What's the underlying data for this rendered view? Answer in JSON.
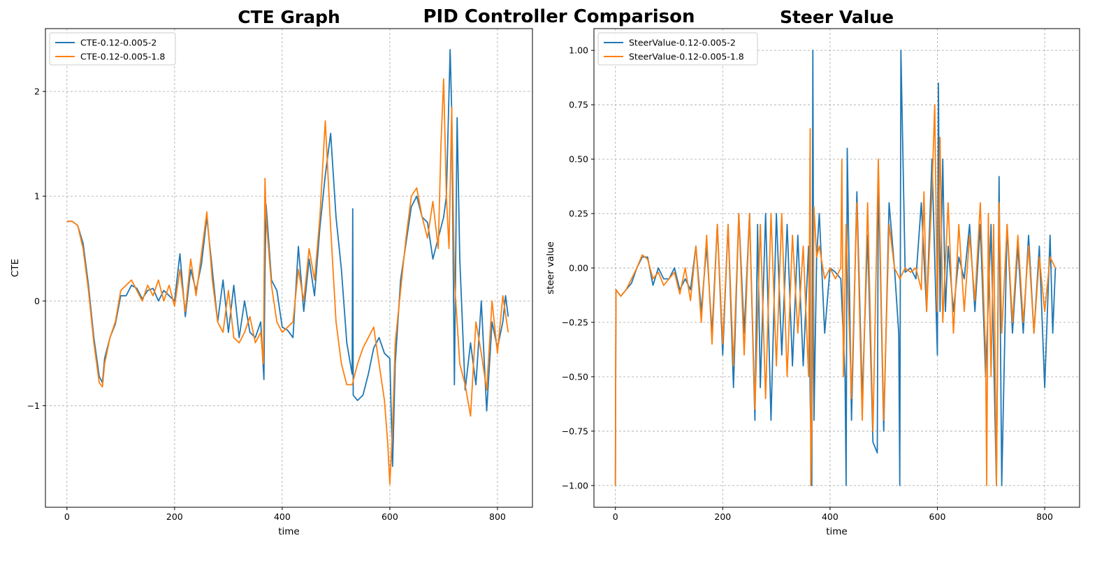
{
  "figure": {
    "suptitle": "PID Controller Comparison"
  },
  "colors": {
    "series1": "#1f77b4",
    "series2": "#ff7f0e",
    "grid": "#b0b0b0",
    "axes": "#000000",
    "legend_border": "#cccccc"
  },
  "chart_data": [
    {
      "type": "line",
      "title": "CTE Graph",
      "xlabel": "time",
      "ylabel": "CTE",
      "xlim": [
        -40,
        865
      ],
      "ylim": [
        -1.97,
        2.6
      ],
      "xticks": [
        0,
        200,
        400,
        600,
        800
      ],
      "yticks": [
        -1,
        0,
        1,
        2
      ],
      "ytick_labels": [
        "−1",
        "0",
        "1",
        "2"
      ],
      "grid": true,
      "legend_position": "upper-left",
      "series": [
        {
          "name": "CTE-0.12-0.005-2",
          "x": [
            0,
            10,
            20,
            30,
            40,
            50,
            60,
            66,
            70,
            80,
            90,
            100,
            110,
            120,
            130,
            140,
            150,
            160,
            170,
            180,
            190,
            200,
            210,
            220,
            230,
            240,
            250,
            260,
            270,
            280,
            290,
            300,
            310,
            320,
            330,
            340,
            350,
            360,
            366,
            368,
            370,
            380,
            390,
            400,
            410,
            420,
            430,
            440,
            450,
            460,
            470,
            480,
            490,
            500,
            510,
            520,
            530,
            531,
            532,
            540,
            550,
            560,
            570,
            580,
            590,
            600,
            605,
            610,
            620,
            630,
            640,
            650,
            660,
            670,
            680,
            690,
            700,
            705,
            712,
            715,
            720,
            725,
            730,
            740,
            750,
            760,
            770,
            780,
            790,
            800,
            810,
            815,
            820
          ],
          "y": [
            0.76,
            0.76,
            0.72,
            0.55,
            0.15,
            -0.35,
            -0.72,
            -0.78,
            -0.55,
            -0.35,
            -0.22,
            0.05,
            0.05,
            0.15,
            0.12,
            0.02,
            0.1,
            0.12,
            0.0,
            0.1,
            0.05,
            0.0,
            0.45,
            -0.15,
            0.3,
            0.1,
            0.35,
            0.8,
            0.3,
            -0.2,
            0.2,
            -0.3,
            0.15,
            -0.35,
            0.0,
            -0.3,
            -0.35,
            -0.2,
            -0.75,
            0.3,
            0.92,
            0.2,
            0.1,
            -0.25,
            -0.28,
            -0.35,
            0.52,
            -0.1,
            0.4,
            0.05,
            0.7,
            1.2,
            1.6,
            0.8,
            0.3,
            -0.4,
            -0.7,
            0.88,
            -0.9,
            -0.95,
            -0.9,
            -0.7,
            -0.45,
            -0.35,
            -0.5,
            -0.55,
            -1.58,
            -0.6,
            0.2,
            0.55,
            0.9,
            1.0,
            0.8,
            0.75,
            0.4,
            0.6,
            0.8,
            1.0,
            2.4,
            1.8,
            -0.8,
            1.75,
            0.4,
            -0.85,
            -0.4,
            -0.8,
            0.0,
            -1.05,
            -0.2,
            -0.45,
            -0.2,
            0.05,
            -0.15
          ]
        },
        {
          "name": "CTE-0.12-0.005-1.8",
          "x": [
            0,
            10,
            20,
            30,
            40,
            50,
            60,
            66,
            70,
            80,
            90,
            100,
            110,
            120,
            130,
            140,
            150,
            160,
            170,
            180,
            190,
            200,
            210,
            220,
            230,
            240,
            250,
            260,
            270,
            280,
            290,
            300,
            310,
            320,
            330,
            340,
            350,
            360,
            365,
            368,
            370,
            380,
            390,
            400,
            410,
            420,
            430,
            440,
            450,
            460,
            470,
            480,
            490,
            500,
            510,
            520,
            530,
            540,
            550,
            560,
            570,
            580,
            590,
            596,
            600,
            605,
            610,
            620,
            630,
            640,
            650,
            660,
            670,
            680,
            690,
            695,
            700,
            705,
            710,
            715,
            720,
            730,
            740,
            750,
            760,
            770,
            780,
            790,
            800,
            810,
            820
          ],
          "y": [
            0.76,
            0.76,
            0.72,
            0.5,
            0.1,
            -0.4,
            -0.78,
            -0.82,
            -0.6,
            -0.35,
            -0.2,
            0.1,
            0.15,
            0.2,
            0.1,
            0.0,
            0.15,
            0.05,
            0.2,
            0.0,
            0.15,
            -0.05,
            0.3,
            -0.1,
            0.4,
            0.05,
            0.45,
            0.85,
            0.2,
            -0.2,
            -0.3,
            0.1,
            -0.35,
            -0.4,
            -0.3,
            -0.15,
            -0.4,
            -0.3,
            -0.6,
            1.17,
            0.8,
            0.15,
            -0.2,
            -0.3,
            -0.25,
            -0.2,
            0.3,
            0.0,
            0.5,
            0.2,
            0.8,
            1.72,
            0.7,
            -0.2,
            -0.6,
            -0.8,
            -0.8,
            -0.6,
            -0.45,
            -0.35,
            -0.25,
            -0.6,
            -0.95,
            -1.35,
            -1.75,
            -1.2,
            -0.4,
            0.1,
            0.6,
            1.0,
            1.08,
            0.8,
            0.6,
            0.95,
            0.5,
            1.5,
            2.12,
            1.0,
            0.5,
            1.85,
            0.2,
            -0.6,
            -0.8,
            -1.1,
            -0.2,
            -0.5,
            -0.85,
            0.0,
            -0.5,
            0.05,
            -0.3
          ]
        }
      ]
    },
    {
      "type": "line",
      "title": "Steer Value",
      "xlabel": "time",
      "ylabel": "steer value",
      "xlim": [
        -40,
        865
      ],
      "ylim": [
        -1.1,
        1.1
      ],
      "xticks": [
        0,
        200,
        400,
        600,
        800
      ],
      "yticks": [
        -1.0,
        -0.75,
        -0.5,
        -0.25,
        0.0,
        0.25,
        0.5,
        0.75,
        1.0
      ],
      "ytick_labels": [
        "−1.00",
        "−0.75",
        "−0.50",
        "−0.25",
        "0.00",
        "0.25",
        "0.50",
        "0.75",
        "1.00"
      ],
      "grid": true,
      "legend_position": "upper-left",
      "series": [
        {
          "name": "SteerValue-0.12-0.005-2",
          "x": [
            0,
            1,
            10,
            20,
            30,
            40,
            50,
            60,
            70,
            80,
            90,
            100,
            110,
            120,
            130,
            140,
            150,
            160,
            170,
            180,
            190,
            200,
            210,
            220,
            230,
            240,
            250,
            260,
            265,
            270,
            280,
            290,
            300,
            310,
            320,
            330,
            340,
            350,
            360,
            363,
            366,
            368,
            370,
            375,
            380,
            390,
            400,
            410,
            420,
            428,
            430,
            432,
            440,
            450,
            460,
            470,
            480,
            488,
            490,
            500,
            510,
            520,
            528,
            530,
            532,
            540,
            550,
            560,
            570,
            580,
            590,
            600,
            602,
            605,
            610,
            615,
            620,
            630,
            640,
            650,
            660,
            670,
            680,
            690,
            700,
            710,
            715,
            720,
            730,
            740,
            750,
            760,
            770,
            780,
            790,
            800,
            810,
            815,
            820
          ],
          "y": [
            -1.0,
            -0.1,
            -0.13,
            -0.1,
            -0.07,
            0.0,
            0.05,
            0.05,
            -0.08,
            0.0,
            -0.05,
            -0.05,
            0.0,
            -0.1,
            -0.05,
            -0.1,
            0.1,
            -0.2,
            0.1,
            -0.3,
            0.2,
            -0.4,
            0.2,
            -0.55,
            0.25,
            -0.3,
            0.25,
            -0.7,
            0.2,
            -0.55,
            0.25,
            -0.7,
            0.25,
            -0.4,
            0.2,
            -0.45,
            0.15,
            -0.45,
            0.1,
            -0.6,
            -1.0,
            1.0,
            -0.7,
            0.05,
            0.25,
            -0.3,
            0.0,
            -0.02,
            -0.05,
            -0.5,
            -1.0,
            0.55,
            -0.7,
            0.35,
            -0.6,
            0.15,
            -0.8,
            -0.85,
            0.45,
            -0.75,
            0.3,
            0.0,
            -0.3,
            -1.0,
            1.0,
            -0.02,
            0.0,
            -0.05,
            0.3,
            -0.2,
            0.5,
            -0.4,
            0.85,
            -0.2,
            0.5,
            -0.2,
            0.1,
            -0.2,
            0.05,
            -0.05,
            0.2,
            -0.2,
            0.2,
            -0.5,
            0.2,
            -1.0,
            0.42,
            -1.0,
            0.2,
            -0.3,
            0.1,
            -0.3,
            0.15,
            -0.3,
            0.1,
            -0.55,
            0.15,
            -0.3,
            0.0
          ]
        },
        {
          "name": "SteerValue-0.12-0.005-1.8",
          "x": [
            0,
            1,
            10,
            20,
            30,
            40,
            50,
            60,
            70,
            80,
            90,
            100,
            110,
            120,
            130,
            140,
            150,
            160,
            170,
            180,
            190,
            200,
            210,
            220,
            230,
            240,
            250,
            260,
            270,
            280,
            290,
            300,
            310,
            320,
            330,
            340,
            350,
            360,
            363,
            364,
            366,
            368,
            370,
            375,
            380,
            390,
            400,
            410,
            420,
            422,
            425,
            430,
            440,
            450,
            460,
            470,
            480,
            490,
            500,
            510,
            520,
            530,
            540,
            550,
            560,
            570,
            575,
            580,
            590,
            595,
            600,
            605,
            610,
            620,
            630,
            640,
            650,
            660,
            670,
            680,
            690,
            692,
            695,
            700,
            705,
            710,
            715,
            720,
            730,
            740,
            750,
            760,
            770,
            780,
            790,
            800,
            810,
            820
          ],
          "y": [
            -1.0,
            -0.1,
            -0.13,
            -0.1,
            -0.05,
            0.0,
            0.06,
            0.04,
            -0.05,
            -0.02,
            -0.08,
            -0.05,
            -0.02,
            -0.12,
            0.0,
            -0.15,
            0.1,
            -0.25,
            0.15,
            -0.35,
            0.2,
            -0.35,
            0.2,
            -0.45,
            0.25,
            -0.4,
            0.25,
            -0.65,
            0.2,
            -0.6,
            0.25,
            -0.45,
            0.25,
            -0.5,
            0.15,
            -0.3,
            0.1,
            -0.5,
            0.64,
            -1.0,
            -0.7,
            -0.4,
            0.28,
            0.05,
            0.1,
            -0.05,
            0.0,
            -0.05,
            0.0,
            0.5,
            -0.5,
            0.2,
            -0.6,
            0.3,
            -0.7,
            0.3,
            -0.75,
            0.5,
            -0.7,
            0.2,
            0.0,
            -0.05,
            0.0,
            -0.02,
            0.0,
            -0.1,
            0.35,
            -0.2,
            0.35,
            0.75,
            -0.2,
            0.6,
            -0.25,
            0.3,
            -0.3,
            0.2,
            -0.2,
            0.15,
            -0.15,
            0.3,
            -0.4,
            -1.0,
            0.25,
            -0.5,
            0.2,
            -1.0,
            0.3,
            -0.3,
            0.2,
            -0.25,
            0.15,
            -0.25,
            0.1,
            -0.3,
            0.05,
            -0.2,
            0.05,
            0.0
          ]
        }
      ]
    }
  ]
}
